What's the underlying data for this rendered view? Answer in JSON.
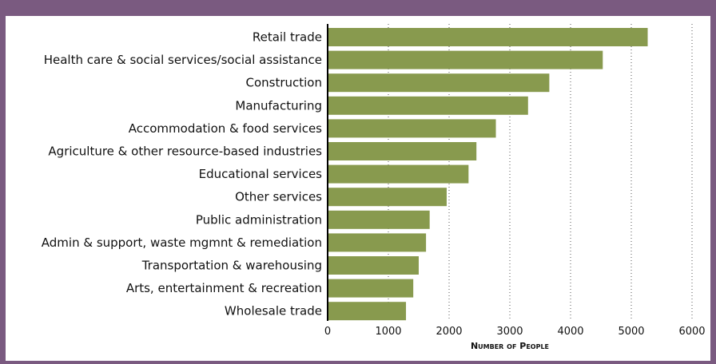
{
  "chart_data": {
    "type": "bar",
    "orientation": "horizontal",
    "categories": [
      "Retail trade",
      "Health care & social services/social assistance",
      "Construction",
      "Manufacturing",
      "Accommodation & food services",
      "Agriculture & other resource-based industries",
      "Educational services",
      "Other services",
      "Public administration",
      "Admin & support, waste mgmnt & remediation",
      "Transportation & warehousing",
      "Arts, entertainment & recreation",
      "Wholesale trade"
    ],
    "values": [
      5270,
      4530,
      3650,
      3300,
      2770,
      2450,
      2320,
      1960,
      1680,
      1620,
      1500,
      1410,
      1290
    ],
    "xlabel": "Number of People",
    "ylabel": "",
    "xlim": [
      0,
      6000
    ],
    "xticks": [
      "0",
      "1000",
      "2000",
      "3000",
      "4000",
      "5000",
      "6000"
    ],
    "grid": "vertical dotted",
    "colors": {
      "bar": "#889a4e",
      "frame": "#7a5a80"
    }
  }
}
